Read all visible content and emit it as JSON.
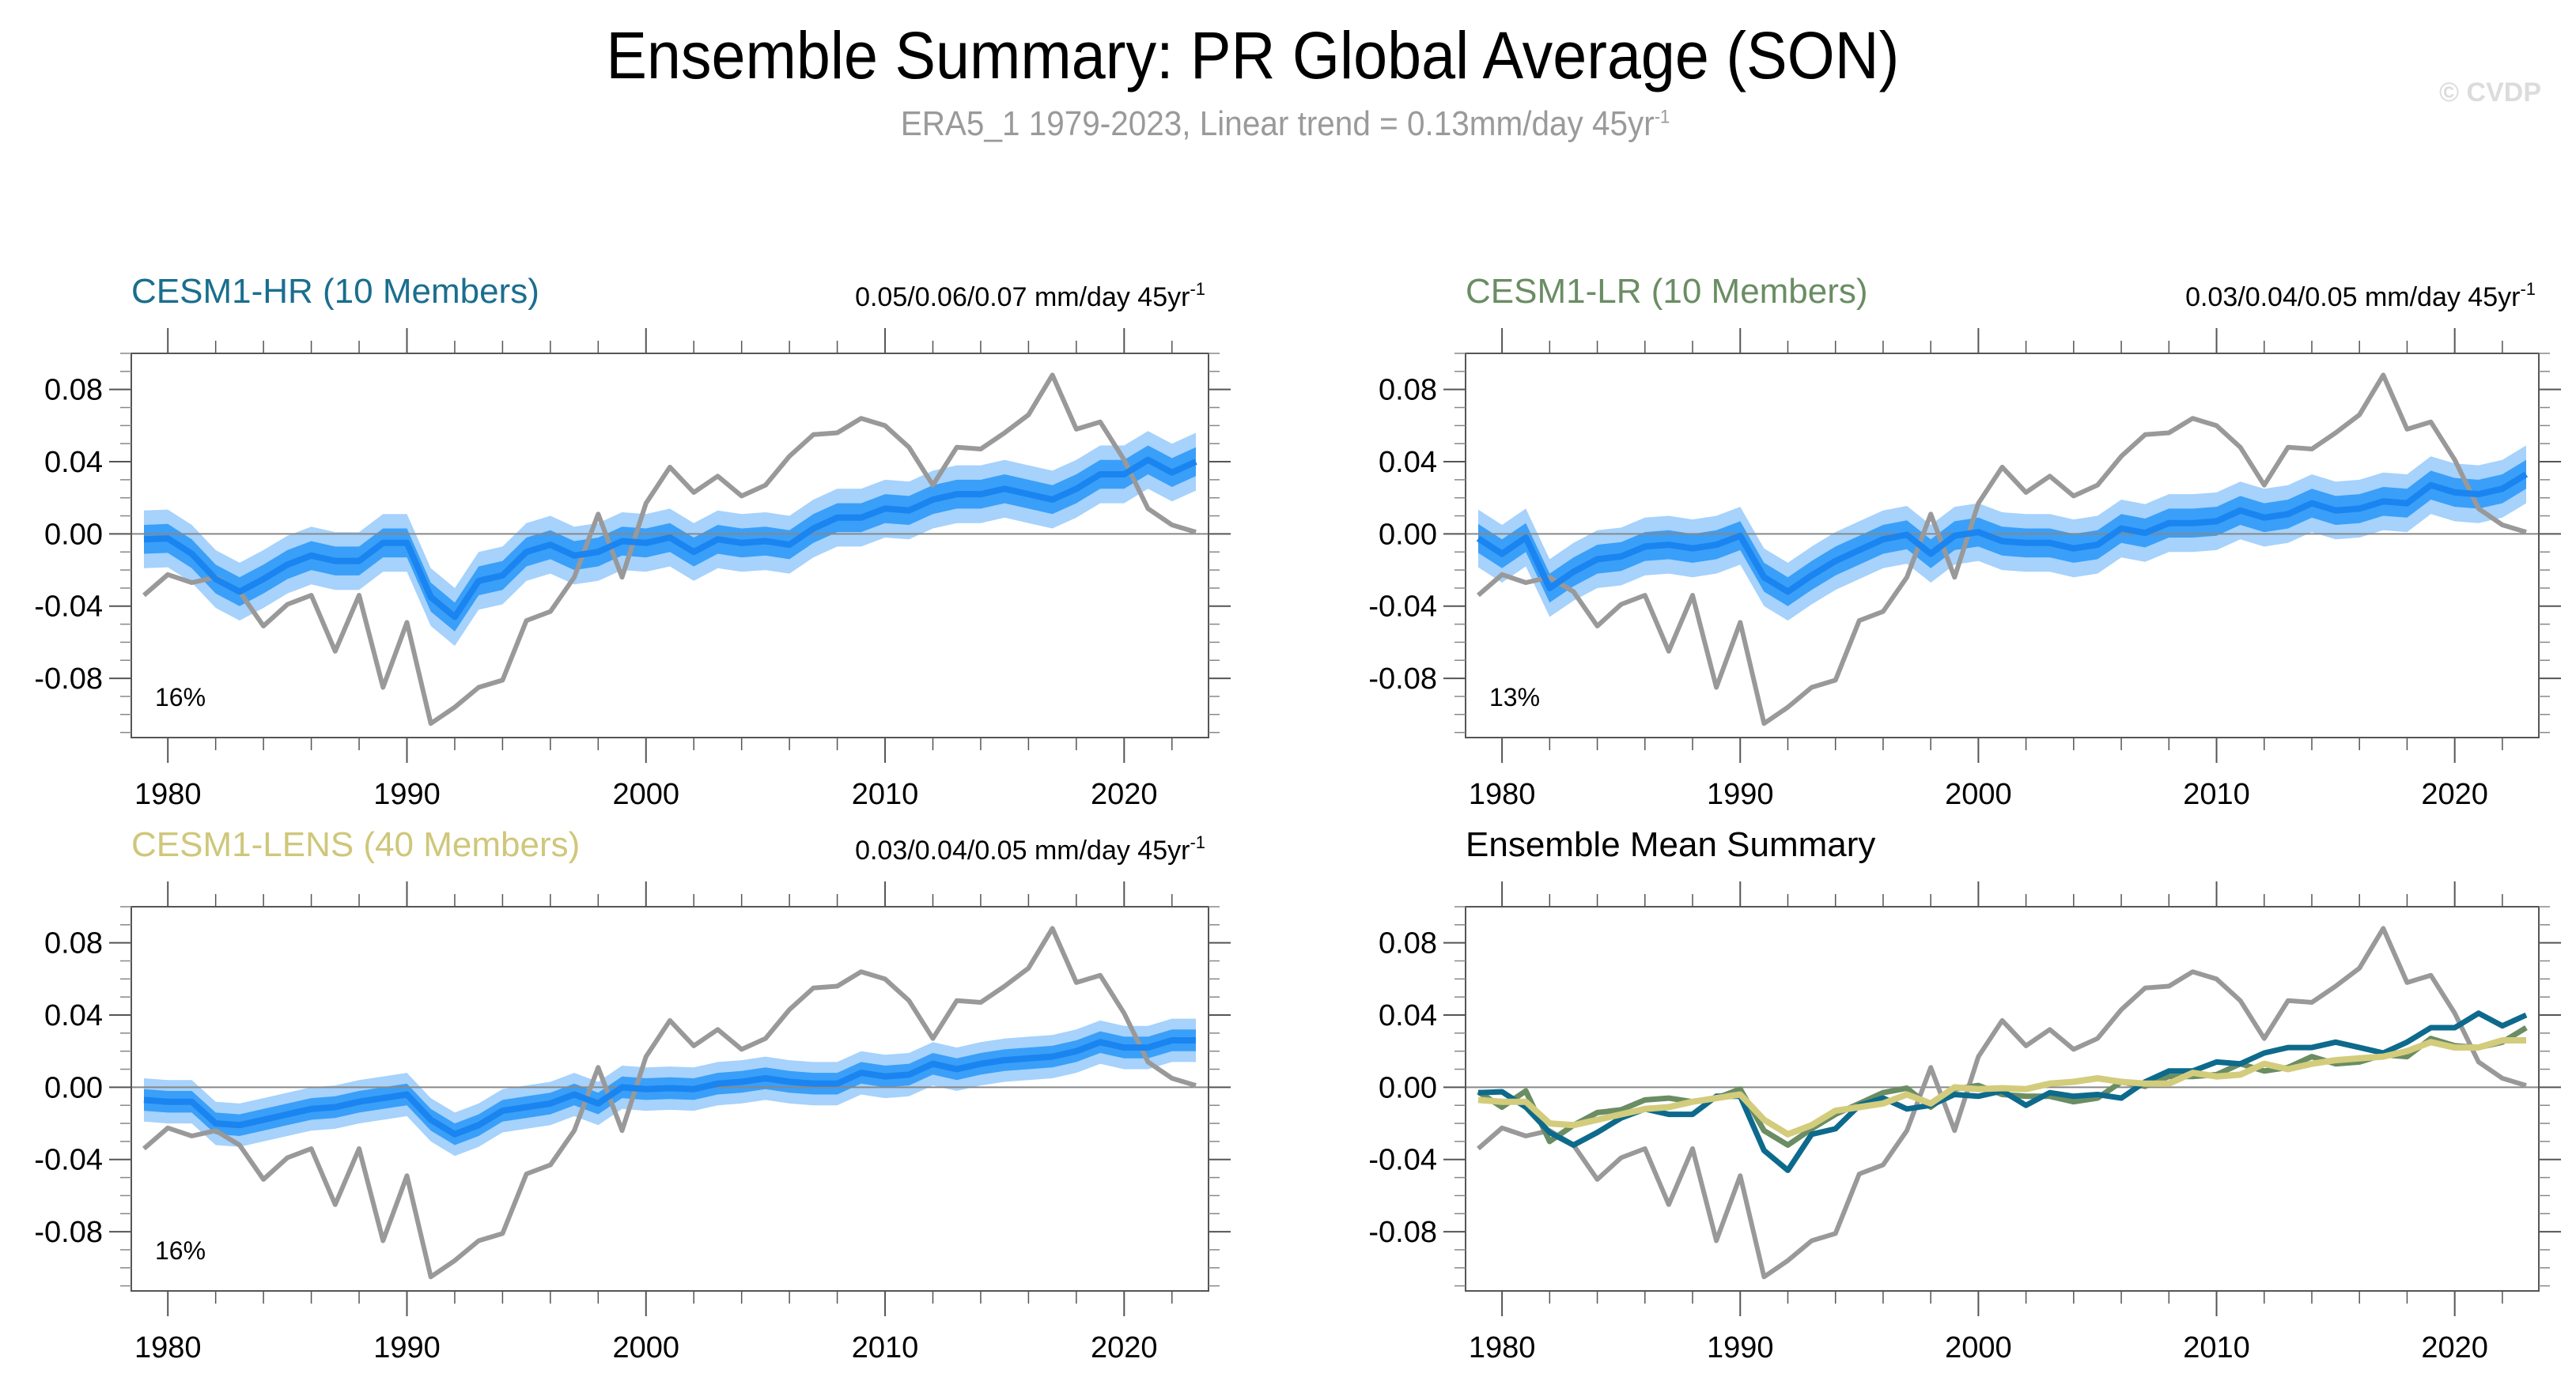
{
  "title": "Ensemble Summary: PR Global Average (SON)",
  "subtitle": {
    "text": "ERA5_1 1979-2023, Linear trend = 0.13mm/day 45yr",
    "sup": "-1"
  },
  "watermark": "© CVDP",
  "colors": {
    "obs": "#999999",
    "band_outer": "#a6d2fc",
    "band_inner": "#3a9ff8",
    "band_mean": "#1a85f0",
    "cesm1_hr": "#0d6a8c",
    "cesm1_lr": "#6a8d63",
    "cesm1_lens": "#d3cc7c"
  },
  "chart_data": [
    {
      "type": "area",
      "id": "hr",
      "title": "CESM1-HR (10 Members)",
      "title_color": "#1a6e8e",
      "trend_text": "0.05/0.06/0.07 mm/day 45yr",
      "trend_sup": "-1",
      "percent_label": "16%",
      "xlim": [
        1979,
        2023
      ],
      "ylim": [
        -0.1128,
        0.1
      ],
      "xticks": [
        1980,
        1990,
        2000,
        2010,
        2020
      ],
      "yticks": [
        0.08,
        0.04,
        0.0,
        -0.04,
        -0.08
      ],
      "ytick_labels": [
        "0.08",
        "0.04",
        "0.00",
        "-0.04",
        "-0.08"
      ],
      "mean": [
        -0.003,
        -0.0025,
        -0.011,
        -0.025,
        -0.032,
        -0.025,
        -0.017,
        -0.012,
        -0.015,
        -0.015,
        -0.005,
        -0.005,
        -0.035,
        -0.046,
        -0.026,
        -0.023,
        -0.01,
        -0.006,
        -0.012,
        -0.01,
        -0.004,
        -0.005,
        -0.002,
        -0.01,
        -0.003,
        -0.005,
        -0.004,
        -0.006,
        0.003,
        0.009,
        0.009,
        0.014,
        0.013,
        0.019,
        0.022,
        0.022,
        0.025,
        0.022,
        0.019,
        0.025,
        0.033,
        0.033,
        0.041,
        0.034,
        0.04
      ],
      "inner_spread": 0.008,
      "outer_spread": 0.016
    },
    {
      "type": "area",
      "id": "lr",
      "title": "CESM1-LR (10 Members)",
      "title_color": "#6a8d63",
      "trend_text": "0.03/0.04/0.05 mm/day 45yr",
      "trend_sup": "-1",
      "percent_label": "13%",
      "xlim": [
        1979,
        2023
      ],
      "ylim": [
        -0.1128,
        0.1
      ],
      "xticks": [
        1980,
        1990,
        2000,
        2010,
        2020
      ],
      "yticks": [
        0.08,
        0.04,
        0.0,
        -0.04,
        -0.08
      ],
      "ytick_labels": [
        "0.08",
        "0.04",
        "0.00",
        "-0.04",
        "-0.08"
      ],
      "mean": [
        -0.0025,
        -0.011,
        -0.002,
        -0.03,
        -0.021,
        -0.014,
        -0.0125,
        -0.007,
        -0.006,
        -0.008,
        -0.006,
        -0.001,
        -0.024,
        -0.032,
        -0.023,
        -0.015,
        -0.009,
        -0.003,
        -0.0005,
        -0.011,
        -0.001,
        0.001,
        -0.004,
        -0.005,
        -0.005,
        -0.008,
        -0.006,
        0.003,
        0.0005,
        0.006,
        0.006,
        0.007,
        0.013,
        0.009,
        0.011,
        0.017,
        0.013,
        0.014,
        0.018,
        0.017,
        0.027,
        0.023,
        0.022,
        0.025,
        0.033
      ],
      "inner_spread": 0.008,
      "outer_spread": 0.016
    },
    {
      "type": "area",
      "id": "lens",
      "title": "CESM1-LENS (40 Members)",
      "title_color": "#cfc77a",
      "trend_text": "0.03/0.04/0.05 mm/day 45yr",
      "trend_sup": "-1",
      "percent_label": "16%",
      "xlim": [
        1979,
        2023
      ],
      "ylim": [
        -0.1128,
        0.1
      ],
      "xticks": [
        1980,
        1990,
        2000,
        2010,
        2020
      ],
      "yticks": [
        0.08,
        0.04,
        0.0,
        -0.04,
        -0.08
      ],
      "ytick_labels": [
        "0.08",
        "0.04",
        "0.00",
        "-0.04",
        "-0.08"
      ],
      "mean": [
        -0.007,
        -0.008,
        -0.008,
        -0.02,
        -0.021,
        -0.018,
        -0.015,
        -0.012,
        -0.011,
        -0.008,
        -0.006,
        -0.004,
        -0.018,
        -0.026,
        -0.021,
        -0.013,
        -0.011,
        -0.009,
        -0.004,
        -0.009,
        0.0,
        -0.001,
        -0.0005,
        -0.001,
        0.002,
        0.003,
        0.005,
        0.003,
        0.002,
        0.002,
        0.008,
        0.006,
        0.007,
        0.013,
        0.01,
        0.013,
        0.015,
        0.016,
        0.017,
        0.02,
        0.025,
        0.022,
        0.022,
        0.026,
        0.026
      ],
      "inner_spread": 0.006,
      "outer_spread": 0.012
    },
    {
      "type": "line",
      "id": "summary",
      "title": "Ensemble Mean Summary",
      "title_color": "#000000",
      "xlim": [
        1979,
        2023
      ],
      "ylim": [
        -0.1128,
        0.1
      ],
      "xticks": [
        1980,
        1990,
        2000,
        2010,
        2020
      ],
      "yticks": [
        0.08,
        0.04,
        0.0,
        -0.04,
        -0.08
      ],
      "ytick_labels": [
        "0.08",
        "0.04",
        "0.00",
        "-0.04",
        "-0.08"
      ],
      "series": [
        "CESM1-HR",
        "CESM1-LR",
        "CESM1-LENS"
      ]
    }
  ],
  "observations": {
    "name": "ERA5_1",
    "x_start": 1979,
    "values": [
      -0.034,
      -0.0225,
      -0.027,
      -0.024,
      -0.032,
      -0.051,
      -0.039,
      -0.034,
      -0.065,
      -0.034,
      -0.085,
      -0.049,
      -0.105,
      -0.096,
      -0.085,
      -0.081,
      -0.048,
      -0.043,
      -0.024,
      0.011,
      -0.024,
      0.017,
      0.037,
      0.023,
      0.032,
      0.021,
      0.027,
      0.043,
      0.055,
      0.056,
      0.064,
      0.06,
      0.048,
      0.027,
      0.048,
      0.047,
      0.056,
      0.066,
      0.088,
      0.058,
      0.062,
      0.041,
      0.014,
      0.005,
      0.001
    ]
  }
}
